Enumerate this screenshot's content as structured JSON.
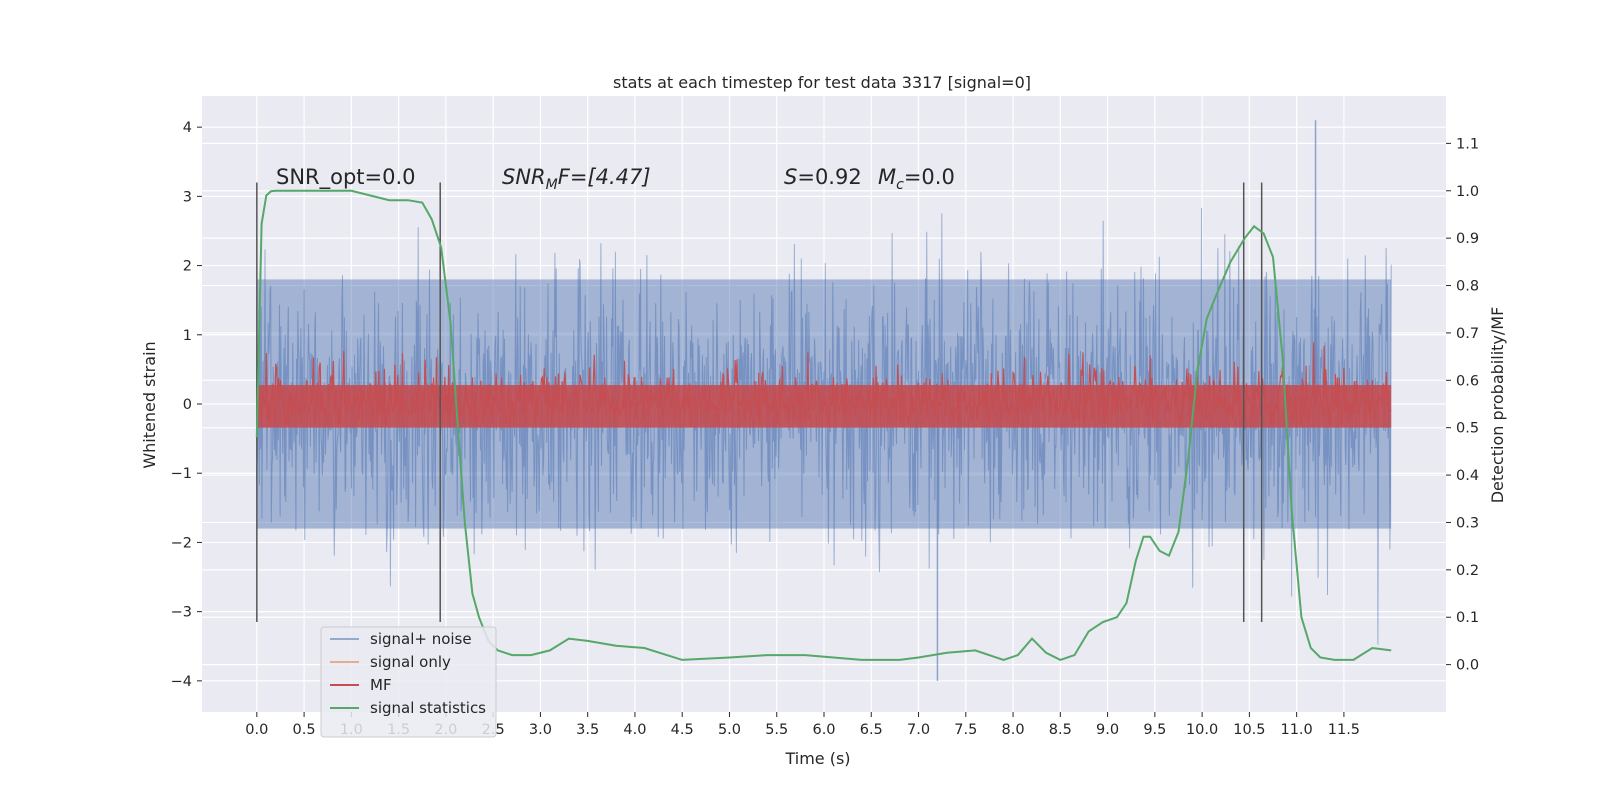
{
  "chart_data": {
    "type": "line",
    "title": "stats at each timestep for test data 3317 [signal=0]",
    "xlabel": "Time (s)",
    "ylabel": "Whitened strain",
    "y2label": "Detection probability/MF",
    "xlim": [
      -0.58,
      12.58
    ],
    "ylim": [
      -4.45,
      4.45
    ],
    "y2lim": [
      -0.1,
      1.2
    ],
    "xticks": [
      0.0,
      0.5,
      1.0,
      1.5,
      2.0,
      2.5,
      3.0,
      3.5,
      4.0,
      4.5,
      5.0,
      5.5,
      6.0,
      6.5,
      7.0,
      7.5,
      8.0,
      8.5,
      9.0,
      9.5,
      10.0,
      10.5,
      11.0,
      11.5
    ],
    "xtick_labels": [
      "0.0",
      "0.5",
      "1.0",
      "1.5",
      "2.0",
      "2.5",
      "3.0",
      "3.5",
      "4.0",
      "4.5",
      "5.0",
      "5.5",
      "6.0",
      "6.5",
      "7.0",
      "7.5",
      "8.0",
      "8.5",
      "9.0",
      "9.5",
      "10.0",
      "10.5",
      "11.0",
      "11.5"
    ],
    "yticks": [
      4,
      3,
      2,
      1,
      0,
      -1,
      -2,
      -3,
      -4
    ],
    "ytick_labels": [
      "4",
      "3",
      "2",
      "1",
      "0",
      "−1",
      "−2",
      "−3",
      "−4"
    ],
    "y2ticks": [
      1.1,
      1.0,
      0.9,
      0.8,
      0.7,
      0.6,
      0.5,
      0.4,
      0.3,
      0.2,
      0.1,
      0.0
    ],
    "y2tick_labels": [
      "1.1",
      "1.0",
      "0.9",
      "0.8",
      "0.7",
      "0.6",
      "0.5",
      "0.4",
      "0.3",
      "0.2",
      "0.1",
      "0.0"
    ],
    "grid": true,
    "legend_position": "lower-left",
    "colors": {
      "background": "#eaeaf2",
      "grid": "#ffffff",
      "signal_noise": "#4c72b0",
      "signal_only": "#dd8452",
      "mf": "#c44e52",
      "stats": "#55a868",
      "vlines": "#555555"
    },
    "annotations": {
      "snr_opt": "SNR_opt=0.0",
      "snr_mf_base": "SNR",
      "snr_mf_sub": "M",
      "snr_mf_rest": "F=[4.47]",
      "s_label": "S",
      "s_value": "=0.92",
      "mc_base": "M",
      "mc_sub": "c",
      "mc_value": "=0.0"
    },
    "vlines": [
      {
        "x": 0.0,
        "y_range": [
          -3.15,
          3.2
        ]
      },
      {
        "x": 1.94,
        "y_range": [
          -3.15,
          3.2
        ]
      },
      {
        "x": 10.44,
        "y_range": [
          -3.15,
          3.2
        ]
      },
      {
        "x": 10.63,
        "y_range": [
          -3.15,
          3.2
        ]
      }
    ],
    "noise_envelope": {
      "x_range": [
        0.0,
        12.0
      ],
      "typical_amplitude": 1.8,
      "max_peak": 4.1,
      "max_peak_x": 11.2,
      "min_trough": -4.0,
      "min_trough_x": 7.2
    },
    "mf_band": {
      "x_range": [
        0.0,
        12.0
      ],
      "y2_range_typical": [
        0.51,
        0.62
      ],
      "y2_floor": 0.5,
      "y2_peak": 0.68
    },
    "series": [
      {
        "name": "signal statistics",
        "axis": "y2",
        "x": [
          0.0,
          0.05,
          0.1,
          0.15,
          0.2,
          0.3,
          0.5,
          0.8,
          1.0,
          1.2,
          1.4,
          1.6,
          1.75,
          1.85,
          1.95,
          2.05,
          2.12,
          2.2,
          2.28,
          2.35,
          2.45,
          2.55,
          2.7,
          2.9,
          3.1,
          3.3,
          3.5,
          3.8,
          4.1,
          4.5,
          5.0,
          5.4,
          5.8,
          6.1,
          6.4,
          6.8,
          7.0,
          7.3,
          7.6,
          7.9,
          8.05,
          8.2,
          8.35,
          8.5,
          8.65,
          8.8,
          8.95,
          9.1,
          9.2,
          9.3,
          9.38,
          9.45,
          9.55,
          9.65,
          9.75,
          9.85,
          9.95,
          10.05,
          10.15,
          10.3,
          10.45,
          10.55,
          10.65,
          10.75,
          10.85,
          10.95,
          11.05,
          11.15,
          11.25,
          11.4,
          11.6,
          11.8,
          12.0
        ],
        "y": [
          0.48,
          0.93,
          0.99,
          0.999,
          1.0,
          1.0,
          1.0,
          1.0,
          1.0,
          0.99,
          0.98,
          0.98,
          0.975,
          0.94,
          0.88,
          0.72,
          0.52,
          0.3,
          0.15,
          0.1,
          0.05,
          0.03,
          0.02,
          0.02,
          0.03,
          0.055,
          0.05,
          0.04,
          0.035,
          0.01,
          0.015,
          0.02,
          0.02,
          0.015,
          0.01,
          0.01,
          0.015,
          0.025,
          0.03,
          0.01,
          0.02,
          0.055,
          0.025,
          0.01,
          0.02,
          0.07,
          0.09,
          0.1,
          0.13,
          0.22,
          0.27,
          0.27,
          0.24,
          0.23,
          0.28,
          0.43,
          0.62,
          0.73,
          0.78,
          0.85,
          0.9,
          0.925,
          0.91,
          0.86,
          0.65,
          0.32,
          0.1,
          0.035,
          0.015,
          0.01,
          0.01,
          0.035,
          0.03
        ]
      }
    ],
    "legend": [
      "signal+ noise",
      "signal only",
      "MF",
      "signal statistics"
    ]
  }
}
